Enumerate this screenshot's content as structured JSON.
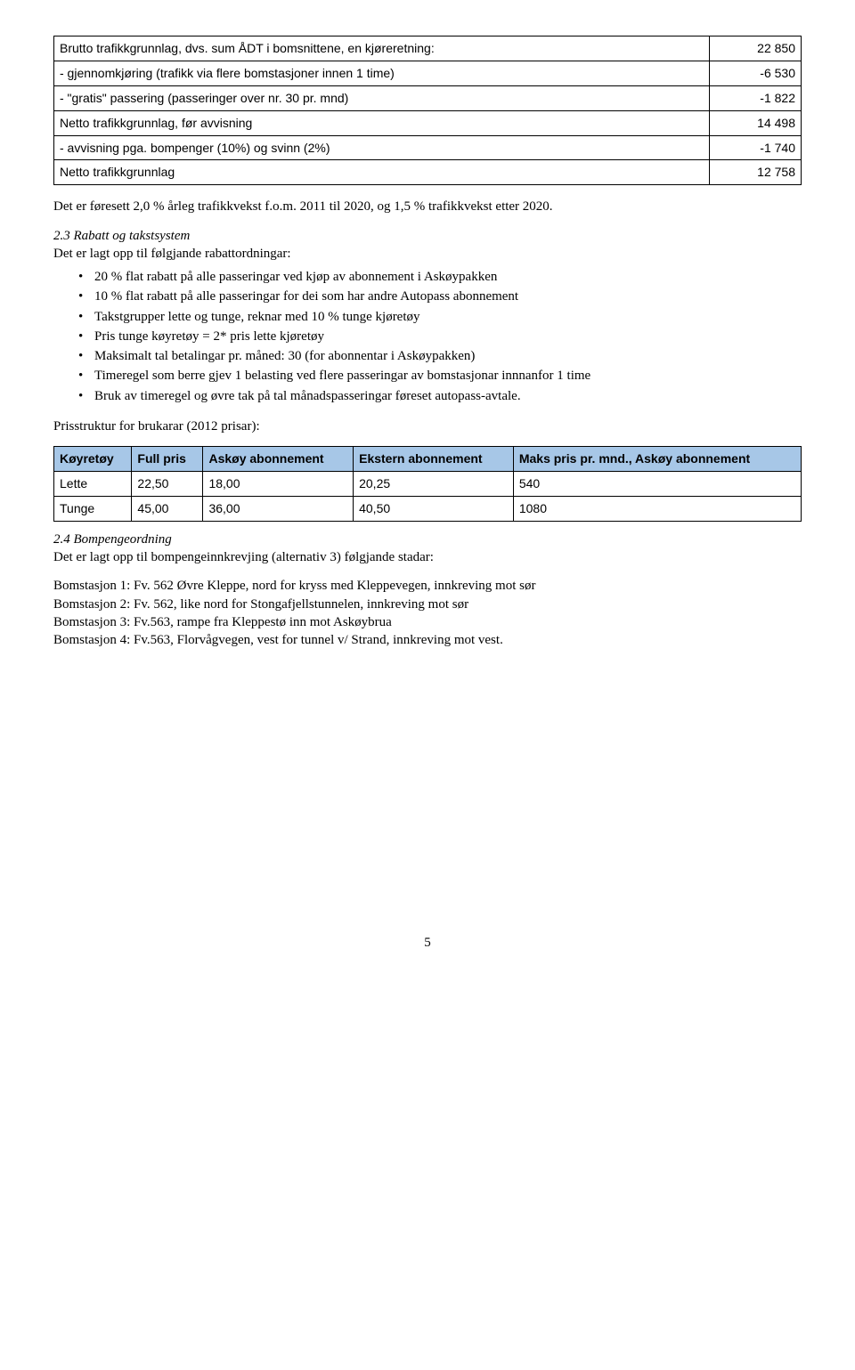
{
  "traffic_table": {
    "rows": [
      {
        "label": "Brutto trafikkgrunnlag, dvs. sum ÅDT i bomsnittene, en kjøreretning:",
        "value": "22 850"
      },
      {
        "label": "-   gjennomkjøring (trafikk via flere bomstasjoner innen 1 time)",
        "value": "-6 530"
      },
      {
        "label": "-   \"gratis\" passering (passeringer over nr. 30 pr. mnd)",
        "value": "-1 822"
      },
      {
        "label": "Netto trafikkgrunnlag, før avvisning",
        "value": "14 498"
      },
      {
        "label": "-   avvisning pga. bompenger (10%)  og svinn (2%)",
        "value": "-1 740"
      },
      {
        "label": "Netto trafikkgrunnlag",
        "value": "12 758"
      }
    ]
  },
  "para_after_traffic": "Det er føresett 2,0 % årleg trafikkvekst f.o.m. 2011 til 2020, og 1,5 % trafikkvekst etter 2020.",
  "section_2_3": {
    "title": "2.3 Rabatt og takstsystem",
    "intro": "Det er lagt opp til følgjande rabattordningar:",
    "bullets": [
      "20 % flat rabatt på alle passeringar ved kjøp av abonnement i Askøypakken",
      "10 % flat rabatt på alle passeringar for dei som har andre Autopass abonnement",
      "Takstgrupper lette og tunge, reknar med 10 % tunge kjøretøy",
      "Pris tunge køyretøy = 2* pris lette kjøretøy",
      "Maksimalt tal betalingar pr. måned: 30 (for abonnentar i Askøypakken)",
      "Timeregel som berre gjev 1 belasting ved flere passeringar av bomstasjonar innnanfor 1 time",
      "Bruk av timeregel og øvre tak på tal månadspasseringar føreset autopass-avtale."
    ],
    "price_intro": "Prisstruktur for brukarar (2012 prisar):"
  },
  "price_table": {
    "headers": [
      "Køyretøy",
      "Full pris",
      "Askøy abonnement",
      "Ekstern abonnement",
      "Maks pris pr. mnd., Askøy abonnement"
    ],
    "rows": [
      [
        "Lette",
        "22,50",
        "18,00",
        "20,25",
        "540"
      ],
      [
        "Tunge",
        "45,00",
        "36,00",
        "40,50",
        "1080"
      ]
    ],
    "header_bg": "#a7c7e7"
  },
  "section_2_4": {
    "title": "2.4 Bompengeordning",
    "intro": "Det er lagt opp til bompengeinnkrevjing (alternativ 3) følgjande stadar:",
    "stations": [
      "Bomstasjon 1: Fv. 562 Øvre Kleppe, nord for kryss med Kleppevegen, innkreving mot sør",
      "Bomstasjon 2: Fv. 562, like nord for Stongafjellstunnelen, innkreving mot sør",
      "Bomstasjon 3: Fv.563, rampe fra Kleppestø inn mot Askøybrua",
      "Bomstasjon 4: Fv.563, Florvågvegen, vest for tunnel v/ Strand, innkreving mot vest."
    ]
  },
  "page_number": "5"
}
